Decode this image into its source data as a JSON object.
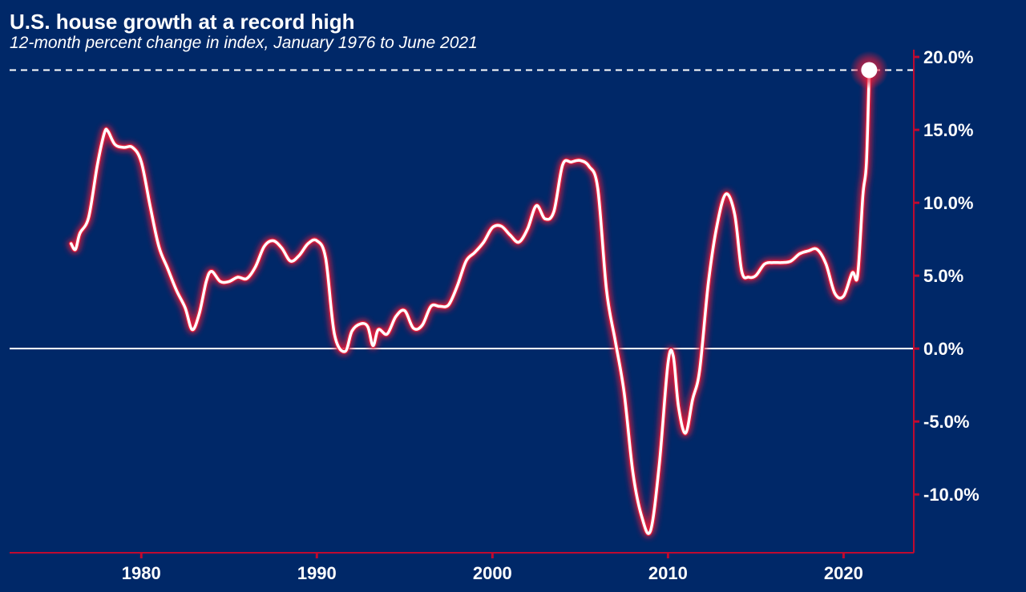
{
  "chart_data": {
    "type": "line",
    "title": "U.S. house growth at a record high",
    "subtitle": "12-month percent change in index, January 1976 to June 2021",
    "x_ticks": [
      "1980",
      "1990",
      "2000",
      "2010",
      "2020"
    ],
    "y_ticks": [
      "20.0%",
      "15.0%",
      "10.0%",
      "5.0%",
      "0.0%",
      "-5.0%",
      "-10.0%"
    ],
    "y_tick_values": [
      20,
      15,
      10,
      5,
      0,
      -5,
      -10
    ],
    "xlim": [
      1972.5,
      2024
    ],
    "ylim": [
      -14,
      20.5
    ],
    "y_axis_position": "right",
    "grid": false,
    "reference_lines": [
      {
        "y": 0,
        "style": "solid"
      },
      {
        "y": 19.1,
        "style": "dashed"
      }
    ],
    "highlight_point": {
      "x": 2021.46,
      "y": 19.1
    },
    "colors": {
      "background": "#002868",
      "line": "#ffffff",
      "glow": "#e01e3c",
      "axis": "#bf0a30"
    },
    "series": [
      {
        "x": [
          1976.0,
          1976.25,
          1976.5,
          1977.0,
          1977.5,
          1977.9,
          1978.1,
          1978.5,
          1979.0,
          1979.5,
          1980.0,
          1980.5,
          1981.0,
          1981.5,
          1982.0,
          1982.5,
          1982.9,
          1983.3,
          1983.7,
          1984.0,
          1984.5,
          1985.0,
          1985.5,
          1986.0,
          1986.5,
          1987.0,
          1987.5,
          1988.0,
          1988.5,
          1989.0,
          1989.5,
          1990.0,
          1990.5,
          1991.0,
          1991.6,
          1992.0,
          1992.5,
          1992.9,
          1993.2,
          1993.5,
          1994.0,
          1994.5,
          1995.0,
          1995.5,
          1996.0,
          1996.5,
          1997.0,
          1997.5,
          1998.0,
          1998.5,
          1999.0,
          1999.5,
          2000.0,
          2000.5,
          2001.0,
          2001.5,
          2002.0,
          2002.5,
          2003.0,
          2003.5,
          2004.0,
          2004.5,
          2005.0,
          2005.5,
          2006.0,
          2006.5,
          2007.0,
          2007.5,
          2008.0,
          2008.5,
          2009.0,
          2009.5,
          2010.0,
          2010.3,
          2010.6,
          2011.0,
          2011.4,
          2011.8,
          2012.3,
          2012.8,
          2013.3,
          2013.8,
          2014.2,
          2014.6,
          2015.0,
          2015.5,
          2016.0,
          2016.5,
          2017.0,
          2017.5,
          2018.0,
          2018.5,
          2019.0,
          2019.5,
          2020.0,
          2020.5,
          2020.8,
          2021.1,
          2021.3,
          2021.46
        ],
        "values": [
          7.2,
          6.8,
          7.9,
          9.0,
          12.6,
          14.8,
          14.9,
          14.0,
          13.8,
          13.8,
          12.8,
          9.8,
          7.0,
          5.5,
          4.0,
          2.8,
          1.3,
          2.4,
          4.6,
          5.3,
          4.6,
          4.6,
          4.9,
          4.8,
          5.6,
          7.0,
          7.4,
          6.9,
          6.0,
          6.4,
          7.2,
          7.4,
          6.2,
          1.0,
          -0.2,
          1.2,
          1.7,
          1.5,
          0.2,
          1.3,
          1.0,
          2.2,
          2.6,
          1.4,
          1.6,
          2.9,
          2.9,
          3.0,
          4.3,
          6.0,
          6.6,
          7.3,
          8.3,
          8.4,
          7.8,
          7.3,
          8.2,
          9.8,
          8.9,
          9.4,
          12.6,
          12.8,
          12.9,
          12.5,
          11.0,
          4.0,
          0.5,
          -3.0,
          -8.5,
          -11.5,
          -12.5,
          -8.0,
          -1.0,
          -0.5,
          -4.0,
          -5.8,
          -3.5,
          -1.5,
          4.5,
          8.5,
          10.6,
          9.2,
          5.3,
          4.9,
          5.0,
          5.8,
          5.9,
          5.9,
          6.0,
          6.5,
          6.7,
          6.8,
          5.8,
          3.8,
          3.6,
          5.2,
          5.0,
          10.5,
          12.7,
          19.1
        ]
      }
    ]
  }
}
